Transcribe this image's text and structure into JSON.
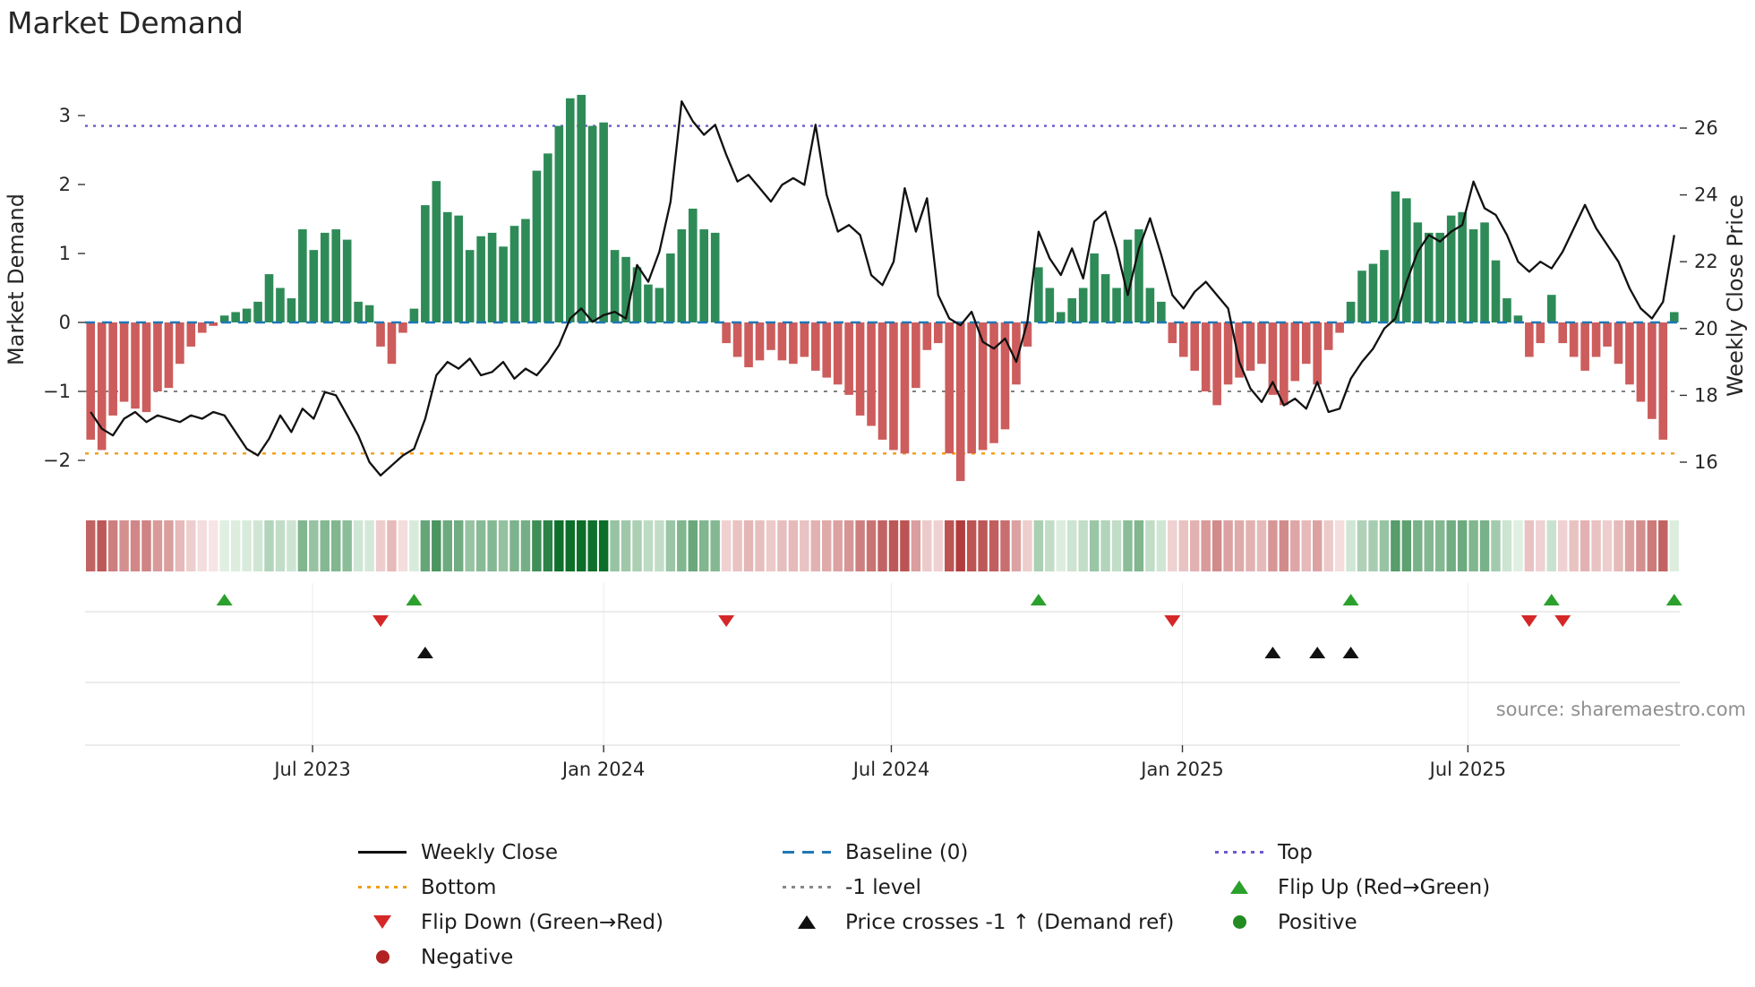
{
  "title": "Market Demand",
  "source": "source: sharemaestro.com",
  "chart_data": {
    "type": "bar",
    "title": "Market Demand",
    "ylabel_left": "Market Demand",
    "ylabel_right": "Weekly Close Price",
    "ylim_left": [
      -2.6,
      3.6
    ],
    "ylim_right": [
      15.4,
      27.1
    ],
    "grid": "off",
    "legend_position": "below",
    "x_ticks": [
      {
        "week": 19.9,
        "label": "Jul 2023"
      },
      {
        "week": 46.0,
        "label": "Jan 2024"
      },
      {
        "week": 71.8,
        "label": "Jul 2024"
      },
      {
        "week": 97.9,
        "label": "Jan 2025"
      },
      {
        "week": 123.5,
        "label": "Jul 2025"
      }
    ],
    "y_left_ticks": [
      {
        "v": 3,
        "label": "3"
      },
      {
        "v": 2,
        "label": "2"
      },
      {
        "v": 1,
        "label": "1"
      },
      {
        "v": 0,
        "label": "0"
      },
      {
        "v": -1,
        "label": "−1"
      },
      {
        "v": -2,
        "label": "−2"
      }
    ],
    "y_right_ticks": [
      {
        "v": 26,
        "label": "26"
      },
      {
        "v": 24,
        "label": "24"
      },
      {
        "v": 22,
        "label": "22"
      },
      {
        "v": 20,
        "label": "20"
      },
      {
        "v": 18,
        "label": "18"
      },
      {
        "v": 16,
        "label": "16"
      }
    ],
    "reference_levels": {
      "top": 2.85,
      "baseline": 0,
      "minus_one": -1,
      "bottom": -1.9
    },
    "series": [
      {
        "name": "Market Demand",
        "type": "bar",
        "axis": "left",
        "values": [
          -1.7,
          -1.85,
          -1.35,
          -1.15,
          -1.25,
          -1.3,
          -1.0,
          -0.95,
          -0.6,
          -0.35,
          -0.15,
          -0.05,
          0.1,
          0.15,
          0.2,
          0.3,
          0.7,
          0.5,
          0.35,
          1.35,
          1.05,
          1.3,
          1.35,
          1.2,
          0.3,
          0.25,
          -0.35,
          -0.6,
          -0.15,
          0.2,
          1.7,
          2.05,
          1.6,
          1.55,
          1.05,
          1.25,
          1.3,
          1.1,
          1.4,
          1.5,
          2.2,
          2.45,
          2.85,
          3.25,
          3.3,
          2.85,
          2.9,
          1.05,
          0.95,
          0.8,
          0.55,
          0.5,
          1.0,
          1.35,
          1.65,
          1.35,
          1.3,
          -0.3,
          -0.5,
          -0.65,
          -0.55,
          -0.4,
          -0.55,
          -0.6,
          -0.5,
          -0.7,
          -0.8,
          -0.9,
          -1.05,
          -1.35,
          -1.5,
          -1.7,
          -1.85,
          -1.9,
          -0.95,
          -0.4,
          -0.3,
          -1.9,
          -2.3,
          -1.9,
          -1.85,
          -1.75,
          -1.55,
          -0.9,
          -0.35,
          0.8,
          0.5,
          0.15,
          0.35,
          0.5,
          1.0,
          0.7,
          0.5,
          1.2,
          1.35,
          0.5,
          0.3,
          -0.3,
          -0.5,
          -0.7,
          -1.0,
          -1.2,
          -0.9,
          -0.8,
          -0.7,
          -0.6,
          -1.05,
          -1.2,
          -0.85,
          -0.6,
          -0.9,
          -0.4,
          -0.15,
          0.3,
          0.75,
          0.85,
          1.05,
          1.9,
          1.8,
          1.45,
          1.3,
          1.3,
          1.55,
          1.6,
          1.35,
          1.45,
          0.9,
          0.35,
          0.1,
          -0.5,
          -0.3,
          0.4,
          -0.3,
          -0.5,
          -0.7,
          -0.5,
          -0.35,
          -0.6,
          -0.9,
          -1.15,
          -1.4,
          -1.7,
          0.15
        ]
      },
      {
        "name": "Weekly Close",
        "type": "line",
        "axis": "right",
        "values": [
          17.5,
          17.0,
          16.8,
          17.3,
          17.5,
          17.2,
          17.4,
          17.3,
          17.2,
          17.4,
          17.3,
          17.5,
          17.4,
          16.9,
          16.4,
          16.2,
          16.7,
          17.4,
          16.9,
          17.6,
          17.3,
          18.1,
          18.0,
          17.4,
          16.8,
          16.0,
          15.6,
          15.9,
          16.2,
          16.4,
          17.3,
          18.6,
          19.0,
          18.8,
          19.1,
          18.6,
          18.7,
          19.0,
          18.5,
          18.8,
          18.6,
          19.0,
          19.5,
          20.3,
          20.6,
          20.2,
          20.4,
          20.5,
          20.3,
          21.9,
          21.4,
          22.3,
          23.8,
          26.8,
          26.2,
          25.8,
          26.1,
          25.2,
          24.4,
          24.6,
          24.2,
          23.8,
          24.3,
          24.5,
          24.3,
          26.1,
          24.0,
          22.9,
          23.1,
          22.8,
          21.6,
          21.3,
          22.0,
          24.2,
          22.9,
          23.9,
          21.0,
          20.3,
          20.1,
          20.5,
          19.6,
          19.4,
          19.7,
          19.0,
          20.2,
          22.9,
          22.1,
          21.6,
          22.4,
          21.5,
          23.2,
          23.5,
          22.4,
          21.0,
          22.4,
          23.3,
          22.2,
          21.0,
          20.6,
          21.1,
          21.4,
          21.0,
          20.6,
          19.0,
          18.2,
          17.8,
          18.4,
          17.7,
          17.9,
          17.6,
          18.4,
          17.5,
          17.6,
          18.5,
          19.0,
          19.4,
          20.0,
          20.3,
          21.4,
          22.3,
          22.8,
          22.6,
          22.9,
          23.1,
          24.4,
          23.6,
          23.4,
          22.8,
          22.0,
          21.7,
          22.0,
          21.8,
          22.3,
          23.0,
          23.7,
          23.0,
          22.5,
          22.0,
          21.2,
          20.6,
          20.3,
          20.8,
          22.8
        ]
      }
    ],
    "heatmap_strip": "color intensity derived from Market Demand bar values (green positive, red negative)",
    "markers": {
      "flip_up_weeks": [
        12,
        29,
        85,
        113,
        131,
        142
      ],
      "flip_down_weeks": [
        26,
        57,
        97,
        129,
        132
      ],
      "price_cross_weeks": [
        30,
        106,
        110,
        113
      ]
    },
    "legend": {
      "columns": [
        [
          {
            "marker": "line",
            "color": "#111111",
            "label": "Weekly Close"
          },
          {
            "marker": "dotted",
            "color": "#f39c12",
            "label": "Bottom"
          },
          {
            "marker": "triangle-down",
            "color": "#d62728",
            "label": "Flip Down (Green→Red)"
          },
          {
            "marker": "circle",
            "color": "#b22222",
            "label": "Negative"
          }
        ],
        [
          {
            "marker": "dashed",
            "color": "#1f77b4",
            "label": "Baseline (0)"
          },
          {
            "marker": "dotted",
            "color": "#888888",
            "label": "-1 level"
          },
          {
            "marker": "triangle-up",
            "color": "#111111",
            "label": "Price crosses -1 ↑ (Demand ref)"
          }
        ],
        [
          {
            "marker": "dotted",
            "color": "#6a5acd",
            "label": "Top"
          },
          {
            "marker": "triangle-up",
            "color": "#2ca02c",
            "label": "Flip Up (Red→Green)"
          },
          {
            "marker": "circle",
            "color": "#228b22",
            "label": "Positive"
          }
        ]
      ]
    },
    "colors": {
      "bar_positive": "#2e8b57",
      "bar_negative": "#cd5c5c",
      "price_line": "#111111",
      "baseline": "#1f77b4",
      "top_line": "#6a5acd",
      "bottom_line": "#f39c12",
      "minus_one_line": "#6e6e6e",
      "flip_up": "#2ca02c",
      "flip_down": "#d62728",
      "price_cross": "#111111",
      "positive_dot": "#228b22",
      "negative_dot": "#b22222",
      "heat_pos_low": "#e7f4e8",
      "heat_pos_high": "#0b6e29",
      "heat_neg_low": "#f9e9e9",
      "heat_neg_high": "#b23c3c"
    }
  }
}
